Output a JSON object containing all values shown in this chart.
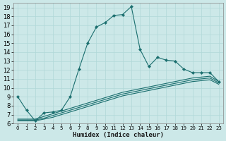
{
  "title": "",
  "xlabel": "Humidex (Indice chaleur)",
  "ylabel": "",
  "bg_color": "#cce8e8",
  "grid_color": "#b0d8d8",
  "line_color": "#1a6e6e",
  "xlim": [
    -0.5,
    23.5
  ],
  "ylim": [
    6,
    19.5
  ],
  "x_ticks": [
    0,
    1,
    2,
    3,
    4,
    5,
    6,
    7,
    8,
    9,
    10,
    11,
    12,
    13,
    14,
    15,
    16,
    17,
    18,
    19,
    20,
    21,
    22,
    23
  ],
  "y_ticks": [
    6,
    7,
    8,
    9,
    10,
    11,
    12,
    13,
    14,
    15,
    16,
    17,
    18,
    19
  ],
  "series1_x": [
    0,
    1,
    2,
    3,
    4,
    5,
    6,
    7,
    8,
    9,
    10,
    11,
    12,
    13,
    14,
    15,
    16,
    17,
    18,
    19,
    20,
    21,
    22,
    23
  ],
  "series1_y": [
    9.0,
    7.5,
    6.3,
    7.2,
    7.3,
    7.5,
    9.0,
    12.1,
    15.0,
    16.8,
    17.3,
    18.1,
    18.2,
    19.1,
    14.3,
    12.4,
    13.4,
    13.1,
    13.0,
    12.1,
    11.7,
    11.7,
    11.7,
    10.7
  ],
  "series2_x": [
    0,
    1,
    2,
    3,
    4,
    5,
    6,
    7,
    8,
    9,
    10,
    11,
    12,
    13,
    14,
    15,
    16,
    17,
    18,
    19,
    20,
    21,
    22,
    23
  ],
  "series2_y": [
    6.5,
    6.5,
    6.5,
    6.8,
    7.1,
    7.4,
    7.7,
    8.0,
    8.3,
    8.6,
    8.9,
    9.2,
    9.5,
    9.7,
    9.9,
    10.1,
    10.3,
    10.5,
    10.7,
    10.9,
    11.1,
    11.2,
    11.3,
    10.7
  ],
  "series3_x": [
    0,
    1,
    2,
    3,
    4,
    5,
    6,
    7,
    8,
    9,
    10,
    11,
    12,
    13,
    14,
    15,
    16,
    17,
    18,
    19,
    20,
    21,
    22,
    23
  ],
  "series3_y": [
    6.4,
    6.4,
    6.4,
    6.6,
    6.9,
    7.2,
    7.5,
    7.8,
    8.1,
    8.4,
    8.7,
    9.0,
    9.3,
    9.5,
    9.7,
    9.9,
    10.1,
    10.3,
    10.5,
    10.7,
    10.9,
    11.0,
    11.1,
    10.55
  ],
  "series4_x": [
    0,
    1,
    2,
    3,
    4,
    5,
    6,
    7,
    8,
    9,
    10,
    11,
    12,
    13,
    14,
    15,
    16,
    17,
    18,
    19,
    20,
    21,
    22,
    23
  ],
  "series4_y": [
    6.3,
    6.3,
    6.3,
    6.5,
    6.7,
    7.0,
    7.3,
    7.6,
    7.9,
    8.2,
    8.5,
    8.8,
    9.1,
    9.3,
    9.5,
    9.7,
    9.9,
    10.1,
    10.3,
    10.5,
    10.7,
    10.8,
    10.9,
    10.4
  ]
}
